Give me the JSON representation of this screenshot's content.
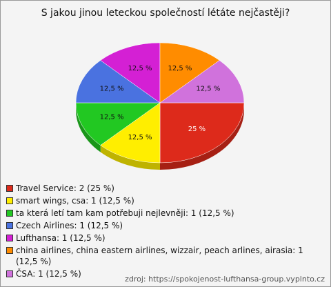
{
  "chart_data": {
    "type": "pie",
    "title": "S jakou jinou leteckou společností létáte nejčastěji?",
    "legend_labels": [
      "Travel Service: 2 (25 %)",
      "smart wings, csa: 1 (12,5 %)",
      "ta která letí tam kam potřebuji nejlevněji: 1 (12,5 %)",
      "Czech Airlines: 1 (12,5 %)",
      "Lufthansa: 1 (12,5 %)",
      "china airlines, china eastern airlines, wizzair, peach arlines, airasia: 1 (12,5 %)",
      "ČSA: 1 (12,5 %)"
    ],
    "values": [
      25,
      12.5,
      12.5,
      12.5,
      12.5,
      12.5,
      12.5
    ],
    "value_labels": [
      "25 %",
      "12,5 %",
      "12,5 %",
      "12,5 %",
      "12,5 %",
      "12,5 %",
      "12,5 %"
    ],
    "colors": [
      "#dd2a1b",
      "#ffee00",
      "#22c822",
      "#4a72e0",
      "#d420d4",
      "#ff8c00",
      "#d072dc"
    ],
    "legend": "bottom",
    "source": "zdroj: https://spokojenost-lufthansa-group.vyplnto.cz"
  }
}
